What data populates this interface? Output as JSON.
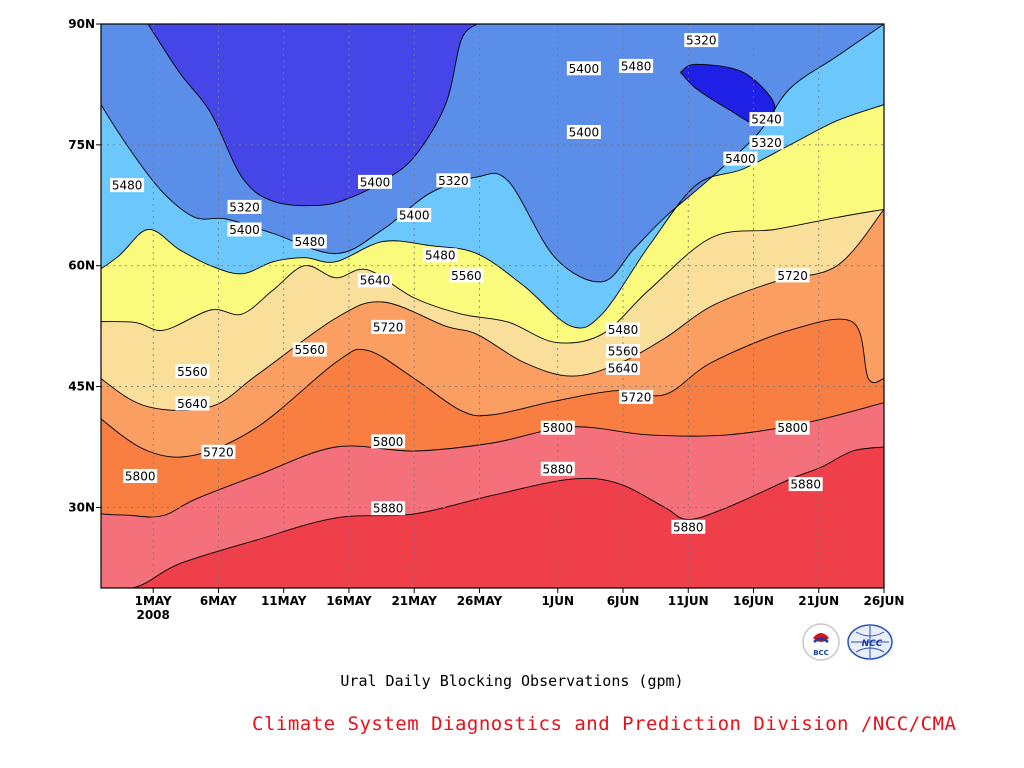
{
  "chart_data": {
    "type": "contour",
    "title": "Ural Daily Blocking Observations (gpm)",
    "xlabel": "",
    "ylabel": "",
    "x_ticks": [
      "1MAY",
      "6MAY",
      "11MAY",
      "16MAY",
      "21MAY",
      "26MAY",
      "1JUN",
      "6JUN",
      "11JUN",
      "16JUN",
      "21JUN",
      "26JUN"
    ],
    "x_year_label": "2008",
    "x_range": [
      "2008-04-27",
      "2008-06-26"
    ],
    "y_ticks": [
      "30N",
      "45N",
      "60N",
      "75N",
      "90N"
    ],
    "y_range": [
      20,
      90
    ],
    "grid": true,
    "contour_levels": [
      5240,
      5320,
      5400,
      5480,
      5560,
      5640,
      5720,
      5800,
      5880
    ],
    "contour_labels": [
      {
        "text": "5320",
        "date": "2008-06-12",
        "lat": 88.0
      },
      {
        "text": "5400",
        "date": "2008-06-03",
        "lat": 84.5
      },
      {
        "text": "5480",
        "date": "2008-06-07",
        "lat": 84.8
      },
      {
        "text": "5240",
        "date": "2008-06-17",
        "lat": 78.2
      },
      {
        "text": "5320",
        "date": "2008-06-17",
        "lat": 75.3
      },
      {
        "text": "5400",
        "date": "2008-06-15",
        "lat": 73.3
      },
      {
        "text": "5400",
        "date": "2008-06-03",
        "lat": 76.6
      },
      {
        "text": "5480",
        "date": "2008-04-29",
        "lat": 70.0
      },
      {
        "text": "5400",
        "date": "2008-05-18",
        "lat": 70.4
      },
      {
        "text": "5320",
        "date": "2008-05-24",
        "lat": 70.6
      },
      {
        "text": "5320",
        "date": "2008-05-08",
        "lat": 67.3
      },
      {
        "text": "5400",
        "date": "2008-05-21",
        "lat": 66.3
      },
      {
        "text": "5400",
        "date": "2008-05-08",
        "lat": 64.5
      },
      {
        "text": "5480",
        "date": "2008-05-13",
        "lat": 63.0
      },
      {
        "text": "5480",
        "date": "2008-05-23",
        "lat": 61.3
      },
      {
        "text": "5640",
        "date": "2008-05-18",
        "lat": 58.2
      },
      {
        "text": "5560",
        "date": "2008-05-25",
        "lat": 58.8
      },
      {
        "text": "5480",
        "date": "2008-06-06",
        "lat": 52.1
      },
      {
        "text": "5720",
        "date": "2008-05-19",
        "lat": 52.4
      },
      {
        "text": "5720",
        "date": "2008-06-19",
        "lat": 58.8
      },
      {
        "text": "5560",
        "date": "2008-05-13",
        "lat": 49.6
      },
      {
        "text": "5560",
        "date": "2008-06-06",
        "lat": 49.4
      },
      {
        "text": "5560",
        "date": "2008-05-04",
        "lat": 46.9
      },
      {
        "text": "5640",
        "date": "2008-06-06",
        "lat": 47.3
      },
      {
        "text": "5720",
        "date": "2008-06-07",
        "lat": 43.7
      },
      {
        "text": "5640",
        "date": "2008-05-04",
        "lat": 42.9
      },
      {
        "text": "5800",
        "date": "2008-05-19",
        "lat": 38.2
      },
      {
        "text": "5800",
        "date": "2008-06-01",
        "lat": 39.9
      },
      {
        "text": "5800",
        "date": "2008-06-19",
        "lat": 39.9
      },
      {
        "text": "5720",
        "date": "2008-05-06",
        "lat": 36.9
      },
      {
        "text": "5880",
        "date": "2008-06-01",
        "lat": 34.8
      },
      {
        "text": "5800",
        "date": "2008-04-30",
        "lat": 33.9
      },
      {
        "text": "5880",
        "date": "2008-06-20",
        "lat": 32.9
      },
      {
        "text": "5880",
        "date": "2008-05-19",
        "lat": 29.9
      },
      {
        "text": "5880",
        "date": "2008-06-11",
        "lat": 27.6
      }
    ],
    "fill_colors": {
      "below_5240": "#1f20e6",
      "5240_5320": "#4646e8",
      "5320_5400": "#5a8ee8",
      "5400_5480": "#6cc8fc",
      "5480_5560": "#fafa7d",
      "5560_5640": "#fadf9a",
      "5640_5720": "#fa9e62",
      "5720_5800": "#f87e42",
      "5800_5880": "#f4707a",
      "above_5880": "#ef3f4a"
    },
    "isolines": [
      {
        "level": 5880,
        "points": [
          [
            -4,
            20
          ],
          [
            4,
            20
          ],
          [
            10,
            23
          ],
          [
            20,
            26
          ],
          [
            30,
            28.7
          ],
          [
            40,
            29.2
          ],
          [
            50,
            31.5
          ],
          [
            60,
            33.5
          ],
          [
            66,
            33
          ],
          [
            72,
            30
          ],
          [
            75,
            28.5
          ],
          [
            80,
            30
          ],
          [
            88,
            33.5
          ],
          [
            92,
            35
          ],
          [
            96,
            37
          ],
          [
            100,
            37.5
          ]
        ]
      },
      {
        "level": 5800,
        "points": [
          [
            -4,
            36
          ],
          [
            -2,
            30
          ],
          [
            4,
            29
          ],
          [
            8,
            29
          ],
          [
            12,
            31
          ],
          [
            20,
            34
          ],
          [
            30,
            37.5
          ],
          [
            40,
            37
          ],
          [
            50,
            38
          ],
          [
            60,
            40
          ],
          [
            70,
            39
          ],
          [
            80,
            39
          ],
          [
            90,
            40.5
          ],
          [
            100,
            43
          ]
        ]
      },
      {
        "level": 5720,
        "points": [
          [
            -4,
            45
          ],
          [
            0,
            41
          ],
          [
            6,
            37
          ],
          [
            12,
            36.5
          ],
          [
            20,
            40
          ],
          [
            30,
            48
          ],
          [
            34,
            49.5
          ],
          [
            40,
            46
          ],
          [
            46,
            42
          ],
          [
            50,
            41.5
          ],
          [
            58,
            43.2
          ],
          [
            66,
            44.5
          ],
          [
            72,
            44
          ],
          [
            78,
            48
          ],
          [
            88,
            52
          ],
          [
            96,
            53
          ],
          [
            98,
            46
          ],
          [
            100,
            46
          ]
        ]
      },
      {
        "level": 5640,
        "points": [
          [
            -4,
            50
          ],
          [
            0,
            46
          ],
          [
            6,
            42.5
          ],
          [
            14,
            42.5
          ],
          [
            20,
            46.5
          ],
          [
            30,
            53.5
          ],
          [
            36,
            55.5
          ],
          [
            44,
            52.5
          ],
          [
            48,
            51.5
          ],
          [
            54,
            48
          ],
          [
            60,
            46.3
          ],
          [
            66,
            47.8
          ],
          [
            72,
            51
          ],
          [
            78,
            55
          ],
          [
            86,
            58
          ],
          [
            94,
            60
          ],
          [
            100,
            67
          ]
        ]
      },
      {
        "level": 5560,
        "points": [
          [
            -4,
            53
          ],
          [
            4,
            53
          ],
          [
            8,
            52
          ],
          [
            14,
            54.5
          ],
          [
            18,
            54
          ],
          [
            22,
            57
          ],
          [
            26,
            60
          ],
          [
            30,
            58.5
          ],
          [
            34,
            59.5
          ],
          [
            40,
            56
          ],
          [
            46,
            54
          ],
          [
            52,
            53
          ],
          [
            58,
            50.5
          ],
          [
            64,
            51.5
          ],
          [
            70,
            57
          ],
          [
            78,
            63.5
          ],
          [
            86,
            64.5
          ],
          [
            94,
            66
          ],
          [
            100,
            67
          ]
        ]
      },
      {
        "level": 5480,
        "points": [
          [
            -4,
            57
          ],
          [
            2,
            61
          ],
          [
            6,
            64.5
          ],
          [
            10,
            62
          ],
          [
            14,
            60
          ],
          [
            18,
            59
          ],
          [
            22,
            60.5
          ],
          [
            26,
            61
          ],
          [
            30,
            60.5
          ],
          [
            36,
            63
          ],
          [
            42,
            62.5
          ],
          [
            48,
            61.5
          ],
          [
            54,
            57.5
          ],
          [
            60,
            52.5
          ],
          [
            64,
            54
          ],
          [
            70,
            62.5
          ],
          [
            76,
            70
          ],
          [
            82,
            72
          ],
          [
            88,
            75
          ],
          [
            94,
            78
          ],
          [
            100,
            80
          ]
        ]
      },
      {
        "level": 5400,
        "points": [
          [
            -4,
            87
          ],
          [
            0,
            80
          ],
          [
            4,
            74
          ],
          [
            8,
            69
          ],
          [
            12,
            66
          ],
          [
            16,
            65.8
          ],
          [
            22,
            64
          ],
          [
            30,
            61.5
          ],
          [
            36,
            64.5
          ],
          [
            42,
            69
          ],
          [
            48,
            71
          ],
          [
            52,
            70.5
          ],
          [
            58,
            61
          ],
          [
            64,
            58
          ],
          [
            68,
            62
          ],
          [
            72,
            66
          ],
          [
            78,
            71
          ],
          [
            84,
            76.5
          ],
          [
            88,
            82
          ],
          [
            94,
            86
          ],
          [
            100,
            90
          ]
        ]
      },
      {
        "level": 5320,
        "points": [
          [
            6,
            90
          ],
          [
            10,
            84
          ],
          [
            14,
            79
          ],
          [
            18,
            71
          ],
          [
            22,
            68
          ],
          [
            28,
            67.5
          ],
          [
            32,
            68.5
          ],
          [
            36,
            70.5
          ],
          [
            40,
            73.5
          ],
          [
            44,
            80
          ],
          [
            46,
            88
          ],
          [
            48,
            90
          ]
        ]
      },
      {
        "level": 5240,
        "points": [
          [
            74,
            84
          ],
          [
            76,
            82
          ],
          [
            80,
            79.5
          ],
          [
            84,
            77.5
          ],
          [
            86,
            80
          ],
          [
            82,
            84
          ],
          [
            76,
            85
          ],
          [
            74,
            84
          ]
        ]
      }
    ],
    "note_labels": []
  },
  "credits": {
    "footer": "Climate System Diagnostics and Prediction Division /NCC/CMA",
    "logos": [
      "BCC",
      "NCC"
    ]
  },
  "colors": {
    "frame": "#000000",
    "gridline": "#7a7a7a",
    "credit_text": "#e8101a"
  }
}
